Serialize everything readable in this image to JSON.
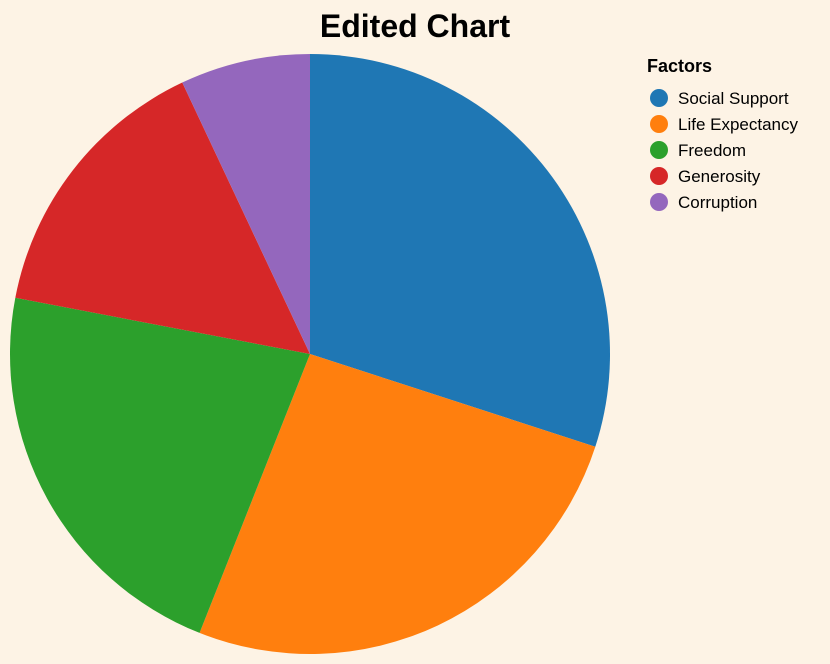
{
  "chart_data": {
    "type": "pie",
    "title": "Edited Chart",
    "legend": {
      "title": "Factors",
      "position": "top-right"
    },
    "categories": [
      "Social Support",
      "Life Expectancy",
      "Freedom",
      "Generosity",
      "Corruption"
    ],
    "values": [
      30,
      26,
      22,
      15,
      7
    ],
    "colors": [
      "#1f77b4",
      "#ff7f0e",
      "#2ca02c",
      "#d62728",
      "#9467bd"
    ],
    "start_angle_deg": 0,
    "direction": "clockwise"
  }
}
